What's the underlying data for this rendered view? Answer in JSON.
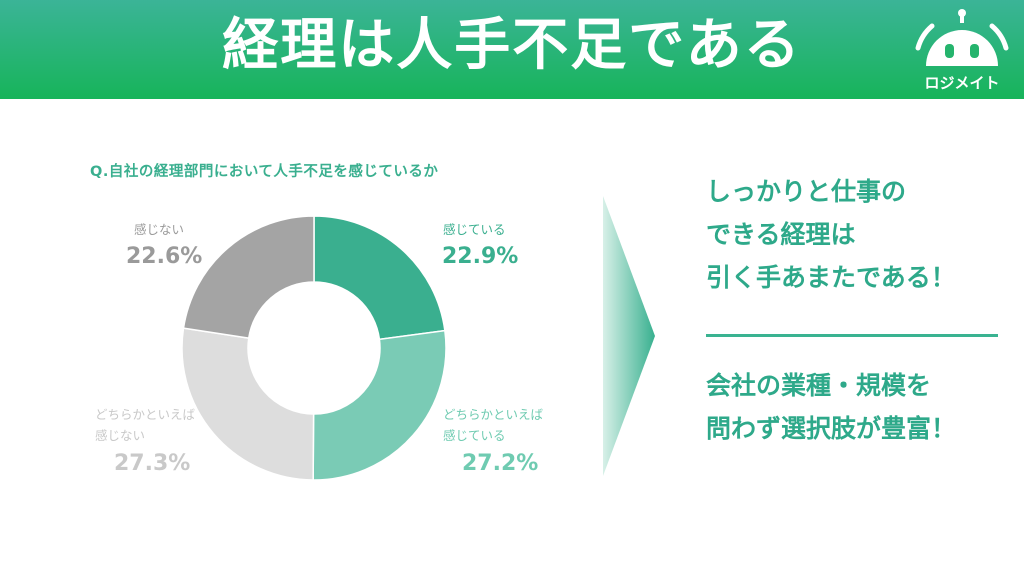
{
  "header": {
    "title": "経理は人手不足である",
    "logo_text": "ロジメイト"
  },
  "question": "Q.自社の経理部門において人手不足を感じているか",
  "chart_data": {
    "type": "pie",
    "title": "",
    "hole": "donut",
    "slices": [
      {
        "label_lines": [
          "感じている"
        ],
        "value": 22.9,
        "value_label": "22.9%",
        "color": "#3aaf8f"
      },
      {
        "label_lines": [
          "どちらかといえば",
          "感じている"
        ],
        "value": 27.2,
        "value_label": "27.2%",
        "color": "#7acbb5"
      },
      {
        "label_lines": [
          "どちらかといえば",
          "感じない"
        ],
        "value": 27.3,
        "value_label": "27.3%",
        "color": "#dddddd"
      },
      {
        "label_lines": [
          "感じない"
        ],
        "value": 22.6,
        "value_label": "22.6%",
        "color": "#a4a4a4"
      }
    ]
  },
  "message": {
    "lines_top": [
      "しっかりと仕事の",
      "できる経理は",
      "引く手あまたである！"
    ],
    "lines_bottom": [
      "会社の業種・規模を",
      "問わず選択肢が豊富！"
    ]
  },
  "colors": {
    "header_top": "#3bb497",
    "header_bottom": "#17b45a",
    "accent": "#2ea98a"
  }
}
